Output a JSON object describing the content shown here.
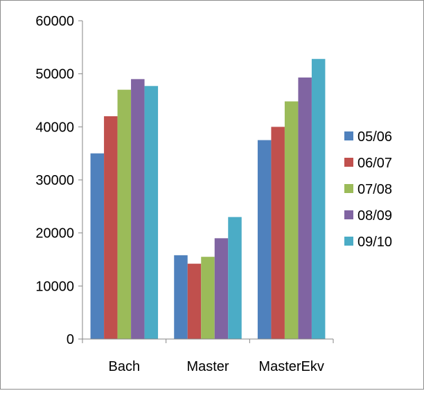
{
  "chart_data": {
    "type": "bar",
    "categories": [
      "Bach",
      "Master",
      "MasterEkv"
    ],
    "series": [
      {
        "name": "05/06",
        "color": "#4F81BD",
        "values": [
          35000,
          15800,
          37500
        ]
      },
      {
        "name": "06/07",
        "color": "#C0504D",
        "values": [
          42000,
          14200,
          40000
        ]
      },
      {
        "name": "07/08",
        "color": "#9BBB59",
        "values": [
          47000,
          15500,
          44800
        ]
      },
      {
        "name": "08/09",
        "color": "#8064A2",
        "values": [
          49000,
          19000,
          49300
        ]
      },
      {
        "name": "09/10",
        "color": "#4BACC6",
        "values": [
          47700,
          23000,
          52800
        ]
      }
    ],
    "ylim": [
      0,
      60000
    ],
    "yticks": [
      "0",
      "10000",
      "20000",
      "30000",
      "40000",
      "50000",
      "60000"
    ],
    "grid": false,
    "legend_position": "right",
    "title": "",
    "xlabel": "",
    "ylabel": ""
  }
}
